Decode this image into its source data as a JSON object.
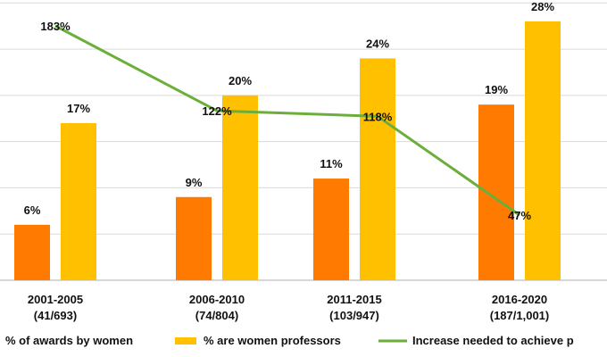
{
  "chart_data": {
    "type": "bar",
    "categories": [
      {
        "period": "2001-2005",
        "counts": "(41/693)"
      },
      {
        "period": "2006-2010",
        "counts": "(74/804)"
      },
      {
        "period": "2011-2015",
        "counts": "(103/947)"
      },
      {
        "period": "2016-2020",
        "counts": "(187/1,001)"
      }
    ],
    "ylim": [
      0,
      30
    ],
    "grid": true,
    "legend_position": "bottom",
    "series": [
      {
        "name": "% of awards by women",
        "kind": "bar",
        "color": "#FF7A00",
        "values": [
          6,
          9,
          11,
          19
        ],
        "labels": [
          "6%",
          "9%",
          "11%",
          "19%"
        ]
      },
      {
        "name": "% are women professors",
        "kind": "bar",
        "color": "#FFC000",
        "values": [
          17,
          20,
          24,
          28
        ],
        "labels": [
          "17%",
          "20%",
          "24%",
          "28%"
        ]
      },
      {
        "name": "Increase needed to achieve p",
        "kind": "line",
        "color": "#6BAF3A",
        "values": [
          183,
          122,
          118,
          47
        ],
        "labels": [
          "183%",
          "122%",
          "118%",
          "47%"
        ]
      }
    ]
  }
}
